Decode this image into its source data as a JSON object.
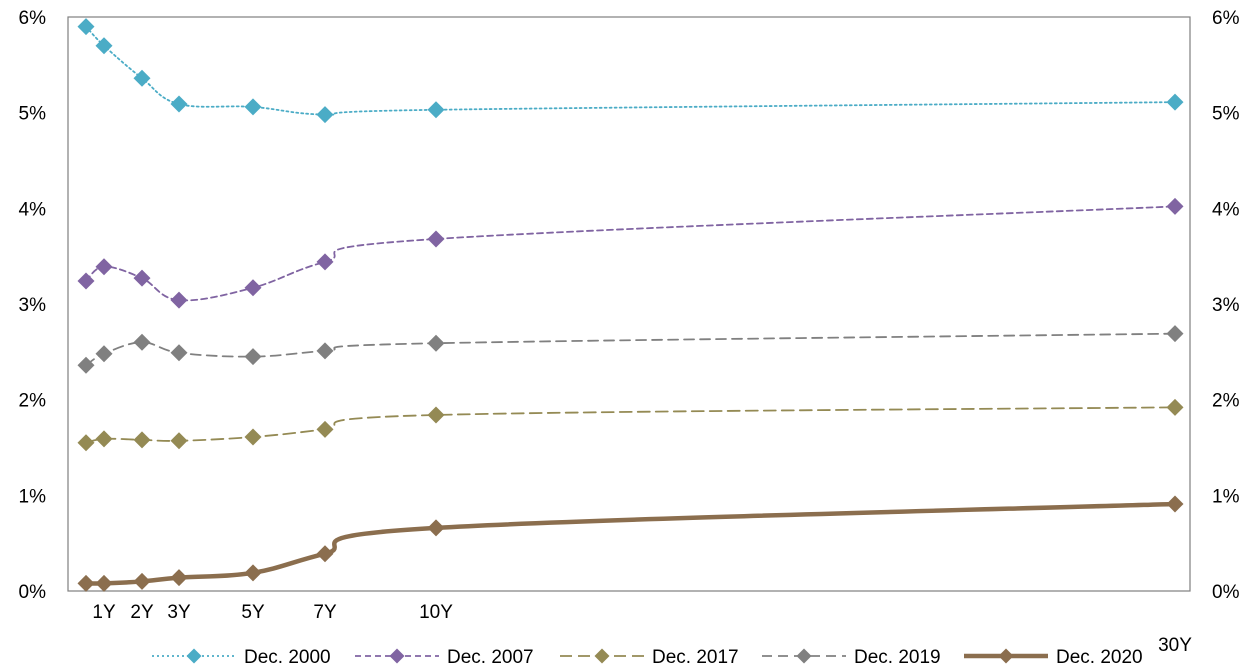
{
  "chart_data": {
    "type": "line",
    "title": "",
    "xlabel": "",
    "ylabel": "",
    "x": [
      0.5,
      1,
      2,
      3,
      5,
      7,
      10,
      30
    ],
    "x_tick_labels": [
      {
        "x": 1,
        "label": "1Y"
      },
      {
        "x": 2,
        "label": "2Y"
      },
      {
        "x": 3,
        "label": "3Y"
      },
      {
        "x": 5,
        "label": "5Y"
      },
      {
        "x": 7,
        "label": "7Y"
      },
      {
        "x": 10,
        "label": "10Y"
      },
      {
        "x": 30,
        "label": "30Y"
      }
    ],
    "ylim": [
      0,
      6
    ],
    "y_tick_labels": [
      "0%",
      "1%",
      "2%",
      "3%",
      "4%",
      "5%",
      "6%"
    ],
    "secondary_y_axis": true,
    "grid": false,
    "legend_position": "bottom",
    "series": [
      {
        "name": "Dec. 2000",
        "color": "#4BACC6",
        "line_style": "dotted",
        "marker": "diamond",
        "values": [
          5.9,
          5.7,
          5.36,
          5.09,
          5.06,
          4.98,
          5.03,
          5.11
        ]
      },
      {
        "name": "Dec. 2007",
        "color": "#8064A2",
        "line_style": "dashed",
        "marker": "diamond",
        "values": [
          3.24,
          3.39,
          3.27,
          3.04,
          3.17,
          3.44,
          3.68,
          4.02
        ]
      },
      {
        "name": "Dec. 2017",
        "color": "#948A54",
        "line_style": "long-dash",
        "marker": "diamond",
        "values": [
          1.55,
          1.59,
          1.58,
          1.57,
          1.61,
          1.69,
          1.84,
          1.92
        ]
      },
      {
        "name": "Dec. 2019",
        "color": "#808080",
        "line_style": "dash",
        "marker": "diamond",
        "values": [
          2.36,
          2.48,
          2.6,
          2.49,
          2.45,
          2.51,
          2.59,
          2.69
        ]
      },
      {
        "name": "Dec. 2020",
        "color": "#8B6E4E",
        "line_style": "solid-thick",
        "marker": "diamond",
        "values": [
          0.08,
          0.08,
          0.1,
          0.14,
          0.19,
          0.39,
          0.66,
          0.91
        ]
      }
    ]
  }
}
